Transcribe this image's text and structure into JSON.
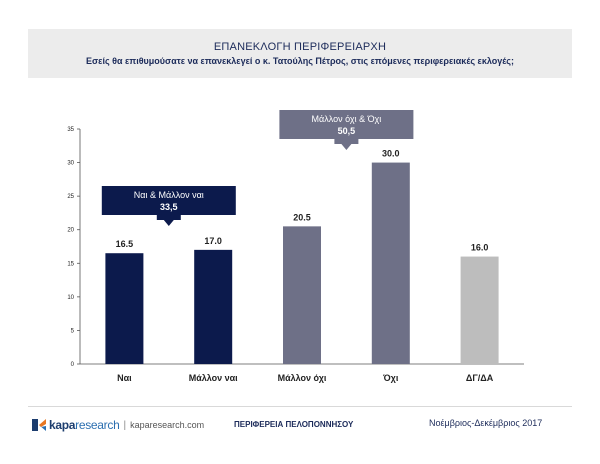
{
  "header": {
    "title": "ΕΠΑΝΕΚΛΟΓΗ ΠΕΡΙΦΕΡΕΙΑΡΧΗ",
    "subtitle": "Εσείς θα επιθυμούσατε να επανεκλεγεί ο κ. Τατούλης Πέτρος, στις επόμενες περιφερειακές εκλογές;"
  },
  "chart_data": {
    "type": "bar",
    "categories": [
      "Ναι",
      "Μάλλον ναι",
      "Μάλλον όχι",
      "Όχι",
      "ΔΓ/ΔΑ"
    ],
    "values": [
      16.5,
      17.0,
      20.5,
      30.0,
      16.0
    ],
    "value_labels": [
      "16.5",
      "17.0",
      "20.5",
      "30.0",
      "16.0"
    ],
    "colors": [
      "#0c1a4c",
      "#0c1a4c",
      "#6e7087",
      "#6e7087",
      "#bdbdbd"
    ],
    "ylim": [
      0,
      35
    ],
    "yticks": [
      0,
      5,
      10,
      15,
      20,
      25,
      30,
      35
    ],
    "grid": false,
    "annotations": [
      {
        "text": "Ναι & Μάλλον ναι",
        "value": "33,5",
        "color": "#0c1a4c"
      },
      {
        "text": "Μάλλον όχι & Όχι",
        "value": "50,5",
        "color": "#6e7087"
      }
    ]
  },
  "footer": {
    "logo_brand": "kapa",
    "logo_brand2": "research",
    "logo_separator": "|",
    "logo_url": "kaparesearch.com",
    "region": "ΠΕΡΙΦΕΡΕΙΑ ΠΕΛΟΠΟΝΝΗΣΟΥ",
    "period": "Νοέμβριος-Δεκέμβριος 2017"
  }
}
